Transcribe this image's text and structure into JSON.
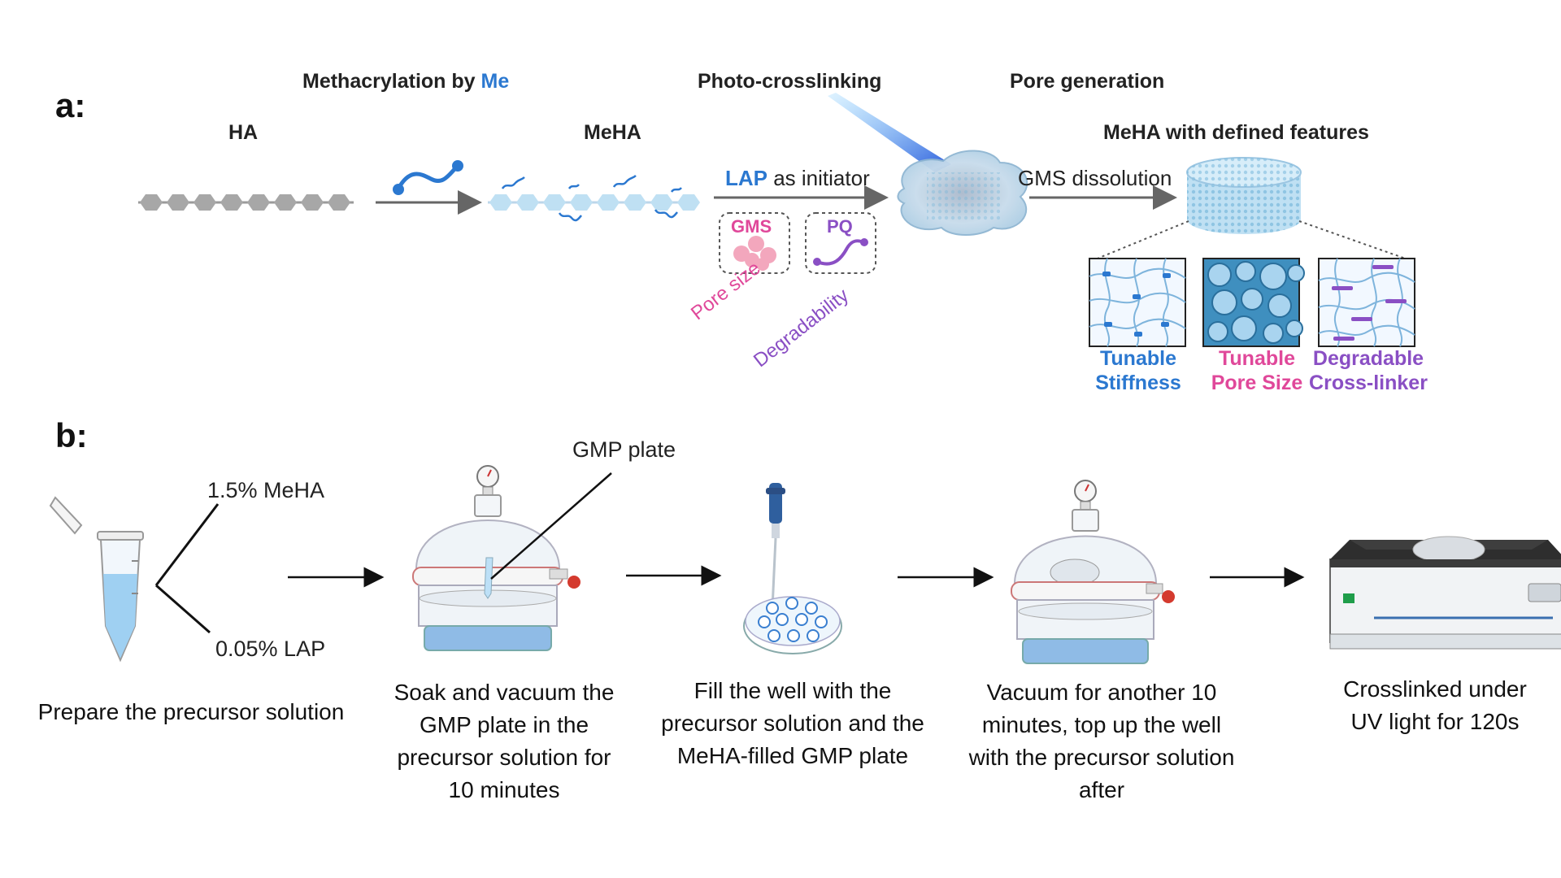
{
  "panel_a": {
    "label": "a:",
    "methacrylation_prefix": "Methacrylation by ",
    "methacrylation_me": "Me",
    "photo_crosslinking": "Photo-crosslinking",
    "pore_generation": "Pore generation",
    "ha": "HA",
    "meha": "MeHA",
    "meha_defined": "MeHA with defined features",
    "lap_word": "LAP",
    "lap_rest": " as initiator",
    "gms_dissolution": "GMS dissolution",
    "gms": "GMS",
    "pq": "PQ",
    "pore_size": "Pore size",
    "degradability": "Degradability",
    "features": [
      {
        "line1": "Tunable",
        "line2": "Stiffness"
      },
      {
        "line1": "Tunable",
        "line2": "Pore Size"
      },
      {
        "line1": "Degradable",
        "line2": "Cross-linker"
      }
    ],
    "colors": {
      "blue": "#2b78d0",
      "pink": "#e0489a",
      "purple": "#8a4fc4"
    }
  },
  "panel_b": {
    "label": "b:",
    "meha_conc": "1.5% MeHA",
    "lap_conc": "0.05% LAP",
    "gmp_plate": "GMP plate",
    "steps": [
      "Prepare the precursor solution",
      "Soak and vacuum the GMP plate in the precursor solution for 10 minutes",
      "Fill the well with the precursor solution and the MeHA-filled GMP plate",
      "Vacuum for another 10 minutes, top up the well with the precursor solution after",
      "Crosslinked under UV light for 120s"
    ]
  }
}
